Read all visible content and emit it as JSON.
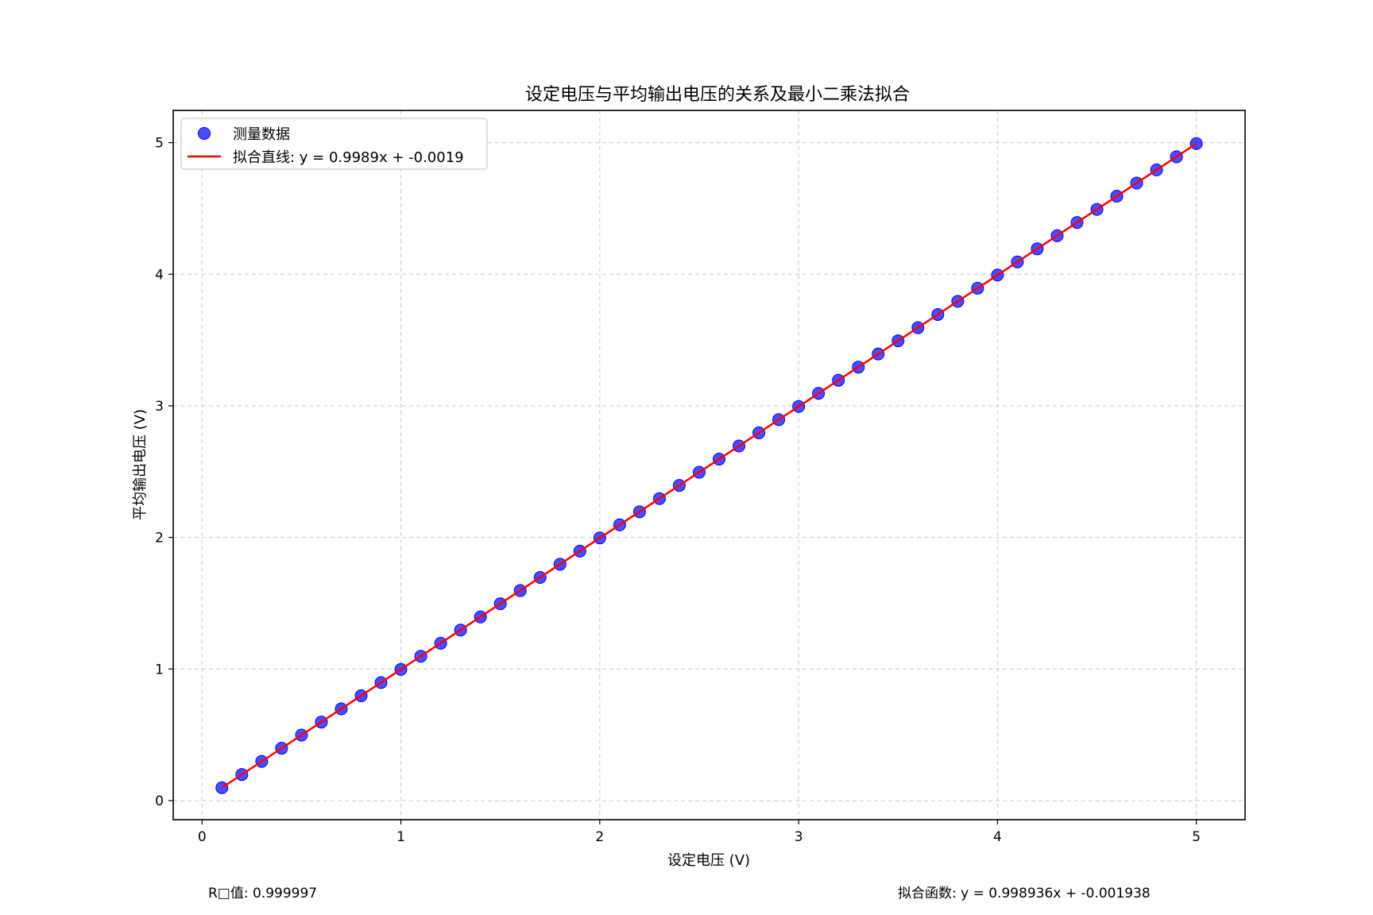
{
  "chart_data": {
    "type": "scatter",
    "title": "设定电压与平均输出电压的关系及最小二乘法拟合",
    "xlabel": "设定电压 (V)",
    "ylabel": "平均输出电压 (V)",
    "xlim": [
      -0.145,
      5.245
    ],
    "ylim": [
      -0.145,
      5.245
    ],
    "xticks": [
      "0",
      "1",
      "2",
      "3",
      "4",
      "5"
    ],
    "yticks": [
      "0",
      "1",
      "2",
      "3",
      "4",
      "5"
    ],
    "grid": true,
    "legend_position": "top-left",
    "series": [
      {
        "name": "测量数据",
        "kind": "scatter",
        "color": "#0000ff",
        "x": [
          0.1,
          0.2,
          0.3,
          0.4,
          0.5,
          0.6,
          0.7,
          0.8,
          0.9,
          1.0,
          1.1,
          1.2,
          1.3,
          1.4,
          1.5,
          1.6,
          1.7,
          1.8,
          1.9,
          2.0,
          2.1,
          2.2,
          2.3,
          2.4,
          2.5,
          2.6,
          2.7,
          2.8,
          2.9,
          3.0,
          3.1,
          3.2,
          3.3,
          3.4,
          3.5,
          3.6,
          3.7,
          3.8,
          3.9,
          4.0,
          4.1,
          4.2,
          4.3,
          4.4,
          4.5,
          4.6,
          4.7,
          4.8,
          4.9,
          5.0
        ],
        "y": [
          0.098,
          0.198,
          0.298,
          0.398,
          0.498,
          0.597,
          0.697,
          0.797,
          0.897,
          0.997,
          1.097,
          1.196,
          1.296,
          1.396,
          1.496,
          1.596,
          1.696,
          1.796,
          1.896,
          1.996,
          2.096,
          2.195,
          2.295,
          2.395,
          2.495,
          2.595,
          2.695,
          2.795,
          2.895,
          2.995,
          3.095,
          3.194,
          3.294,
          3.394,
          3.494,
          3.594,
          3.694,
          3.794,
          3.894,
          3.994,
          4.094,
          4.193,
          4.293,
          4.393,
          4.493,
          4.593,
          4.693,
          4.793,
          4.893,
          4.993
        ]
      },
      {
        "name": "拟合直线: y = 0.9989x + -0.0019",
        "kind": "line",
        "color": "#ff0000",
        "slope": 0.998936,
        "intercept": -0.001938,
        "x_range": [
          0.1,
          5.0
        ]
      }
    ]
  },
  "annotations": {
    "r_squared": "R□值: 0.999997",
    "fit_function": "拟合函数: y = 0.998936x + -0.001938"
  }
}
